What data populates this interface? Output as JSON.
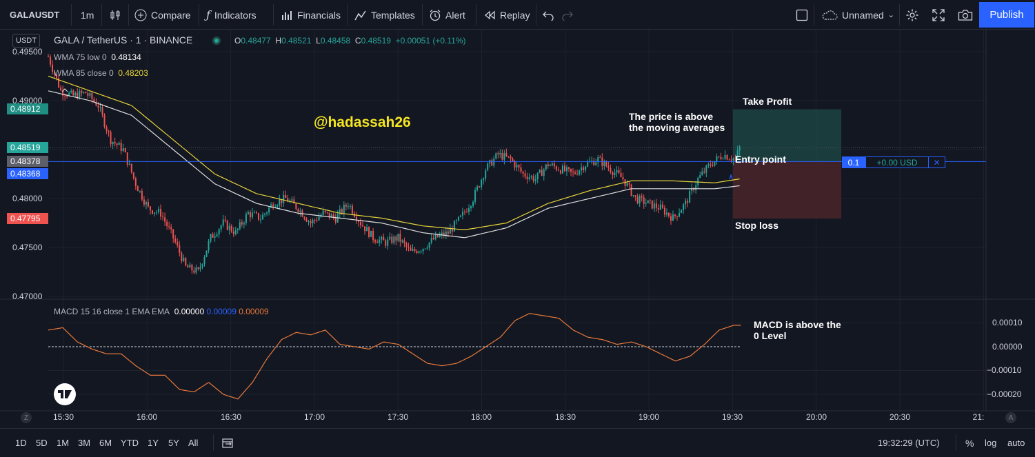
{
  "toolbar": {
    "symbol": "GALAUSDT",
    "interval": "1m",
    "compare": "Compare",
    "indicators": "Indicators",
    "financials": "Financials",
    "templates": "Templates",
    "alert": "Alert",
    "replay": "Replay",
    "layout_name": "Unnamed",
    "publish": "Publish"
  },
  "header": {
    "currency": "USDT",
    "title": "GALA / TetherUS · 1 · BINANCE",
    "o_label": "O",
    "o": "0.48477",
    "h_label": "H",
    "h": "0.48521",
    "l_label": "L",
    "l": "0.48458",
    "c_label": "C",
    "c": "0.48519",
    "change": "+0.00051 (+0.11%)"
  },
  "legend": {
    "wma75_label": "WMA 75 low 0",
    "wma75_value": "0.48134",
    "wma85_label": "WMA 85 close 0",
    "wma85_value": "0.48203",
    "macd_label": "MACD 15 16 close 1 EMA EMA",
    "macd_v1": "0.00000",
    "macd_v2": "0.00009",
    "macd_v3": "0.00009"
  },
  "annotations": {
    "watermark": "@hadassah26",
    "price_note_1": "The price is above",
    "price_note_2": "the moving averages",
    "take_profit": "Take Profit",
    "entry": "Entry point",
    "stop_loss": "Stop loss",
    "macd_note_1": "MACD is above the",
    "macd_note_2": "0 Level"
  },
  "position": {
    "qty": "0.1",
    "pnl": "+0.00 USD",
    "close": "✕"
  },
  "price_axis": [
    "0.49500",
    "0.49000",
    "0.48000",
    "0.47500",
    "0.47000"
  ],
  "price_labels": {
    "take_profit": "0.48912",
    "last": "0.48519",
    "entry": "0.48378",
    "crosshair": "0.48368",
    "stop": "0.47795"
  },
  "macd_axis": [
    "0.00010",
    "0.00000",
    "−0.00010",
    "−0.00020"
  ],
  "time_axis": [
    "15:30",
    "16:00",
    "16:30",
    "17:00",
    "17:30",
    "18:00",
    "18:30",
    "19:00",
    "19:30",
    "20:00",
    "20:30",
    "21:"
  ],
  "bottom": {
    "ranges": [
      "1D",
      "5D",
      "1M",
      "3M",
      "6M",
      "YTD",
      "1Y",
      "5Y",
      "All"
    ],
    "clock": "19:32:29 (UTC)",
    "percent": "%",
    "log": "log",
    "auto": "auto",
    "z": "Z",
    "a": "A"
  },
  "colors": {
    "up": "#26a69a",
    "down": "#ef5350",
    "wma75": "#e0e0e0",
    "wma85": "#e6d33a",
    "macd": "#e9793a",
    "entry_line": "#2962ff"
  },
  "chart_data": {
    "type": "candlestick",
    "symbol": "GALA / TetherUS",
    "x_start": "15:25",
    "x_end": "19:32",
    "interval_minutes": 1,
    "ylim": [
      0.47,
      0.4955
    ],
    "close_path": [
      [
        0,
        0.4945
      ],
      [
        6,
        0.491
      ],
      [
        12,
        0.4905
      ],
      [
        18,
        0.4908
      ],
      [
        24,
        0.4895
      ],
      [
        30,
        0.486
      ],
      [
        36,
        0.485
      ],
      [
        42,
        0.4815
      ],
      [
        48,
        0.479
      ],
      [
        54,
        0.4785
      ],
      [
        60,
        0.476
      ],
      [
        66,
        0.473
      ],
      [
        72,
        0.4725
      ],
      [
        78,
        0.476
      ],
      [
        84,
        0.4775
      ],
      [
        90,
        0.4765
      ],
      [
        96,
        0.4785
      ],
      [
        102,
        0.478
      ],
      [
        108,
        0.4795
      ],
      [
        114,
        0.48
      ],
      [
        120,
        0.479
      ],
      [
        126,
        0.4775
      ],
      [
        132,
        0.4785
      ],
      [
        138,
        0.478
      ],
      [
        144,
        0.4795
      ],
      [
        150,
        0.4775
      ],
      [
        156,
        0.476
      ],
      [
        162,
        0.4755
      ],
      [
        168,
        0.476
      ],
      [
        174,
        0.4745
      ],
      [
        180,
        0.475
      ],
      [
        186,
        0.476
      ],
      [
        192,
        0.4765
      ],
      [
        198,
        0.478
      ],
      [
        204,
        0.48
      ],
      [
        210,
        0.483
      ],
      [
        216,
        0.4845
      ],
      [
        222,
        0.484
      ],
      [
        228,
        0.4825
      ],
      [
        234,
        0.482
      ],
      [
        240,
        0.4835
      ],
      [
        246,
        0.483
      ],
      [
        252,
        0.4825
      ],
      [
        258,
        0.4835
      ],
      [
        264,
        0.484
      ],
      [
        270,
        0.483
      ],
      [
        276,
        0.482
      ],
      [
        282,
        0.48
      ],
      [
        288,
        0.4795
      ],
      [
        294,
        0.479
      ],
      [
        300,
        0.478
      ],
      [
        306,
        0.4795
      ],
      [
        312,
        0.482
      ],
      [
        318,
        0.4835
      ],
      [
        324,
        0.4845
      ],
      [
        330,
        0.484
      ],
      [
        332,
        0.4852
      ]
    ],
    "wma75": [
      [
        0,
        0.491
      ],
      [
        20,
        0.49
      ],
      [
        40,
        0.4885
      ],
      [
        60,
        0.485
      ],
      [
        80,
        0.4815
      ],
      [
        100,
        0.4795
      ],
      [
        120,
        0.4785
      ],
      [
        140,
        0.478
      ],
      [
        160,
        0.4775
      ],
      [
        180,
        0.4765
      ],
      [
        200,
        0.476
      ],
      [
        220,
        0.477
      ],
      [
        240,
        0.479
      ],
      [
        260,
        0.48
      ],
      [
        280,
        0.481
      ],
      [
        300,
        0.481
      ],
      [
        320,
        0.481
      ],
      [
        332,
        0.4813
      ]
    ],
    "wma85": [
      [
        0,
        0.4925
      ],
      [
        20,
        0.491
      ],
      [
        40,
        0.4895
      ],
      [
        60,
        0.486
      ],
      [
        80,
        0.4825
      ],
      [
        100,
        0.4805
      ],
      [
        120,
        0.4795
      ],
      [
        140,
        0.4785
      ],
      [
        160,
        0.478
      ],
      [
        180,
        0.4772
      ],
      [
        200,
        0.4768
      ],
      [
        220,
        0.4775
      ],
      [
        240,
        0.4795
      ],
      [
        260,
        0.4808
      ],
      [
        280,
        0.4818
      ],
      [
        300,
        0.4818
      ],
      [
        320,
        0.4816
      ],
      [
        332,
        0.482
      ]
    ],
    "macd": [
      [
        0,
        7e-05
      ],
      [
        10,
        8e-05
      ],
      [
        20,
        2e-05
      ],
      [
        30,
        -1e-05
      ],
      [
        40,
        -3e-05
      ],
      [
        50,
        -3e-05
      ],
      [
        60,
        -8e-05
      ],
      [
        70,
        -0.00012
      ],
      [
        80,
        -0.00012
      ],
      [
        90,
        -0.00018
      ],
      [
        100,
        -0.00019
      ],
      [
        110,
        -0.00015
      ],
      [
        120,
        -0.0002
      ],
      [
        130,
        -0.00022
      ],
      [
        140,
        -0.00015
      ],
      [
        150,
        -5e-05
      ],
      [
        160,
        3e-05
      ],
      [
        170,
        6e-05
      ],
      [
        180,
        5e-05
      ],
      [
        190,
        7e-05
      ],
      [
        200,
        1e-05
      ],
      [
        210,
        0.0
      ],
      [
        220,
        -1e-05
      ],
      [
        230,
        2e-05
      ],
      [
        240,
        1e-05
      ],
      [
        250,
        -3e-05
      ],
      [
        260,
        -7e-05
      ],
      [
        270,
        -8e-05
      ],
      [
        280,
        -7e-05
      ],
      [
        290,
        -4e-05
      ],
      [
        300,
        0.0
      ],
      [
        310,
        4e-05
      ],
      [
        320,
        0.00011
      ],
      [
        330,
        0.00014
      ],
      [
        340,
        0.00013
      ],
      [
        350,
        0.00012
      ],
      [
        360,
        7e-05
      ],
      [
        370,
        4e-05
      ],
      [
        380,
        3e-05
      ],
      [
        390,
        1e-05
      ],
      [
        400,
        2e-05
      ],
      [
        410,
        0.0
      ],
      [
        420,
        -3e-05
      ],
      [
        430,
        -6e-05
      ],
      [
        440,
        -4e-05
      ],
      [
        450,
        1e-05
      ],
      [
        460,
        7e-05
      ],
      [
        470,
        9e-05
      ],
      [
        475,
        9e-05
      ]
    ],
    "levels": {
      "take_profit": 0.48912,
      "entry": 0.48378,
      "stop_loss": 0.47795,
      "last": 0.48519
    }
  }
}
